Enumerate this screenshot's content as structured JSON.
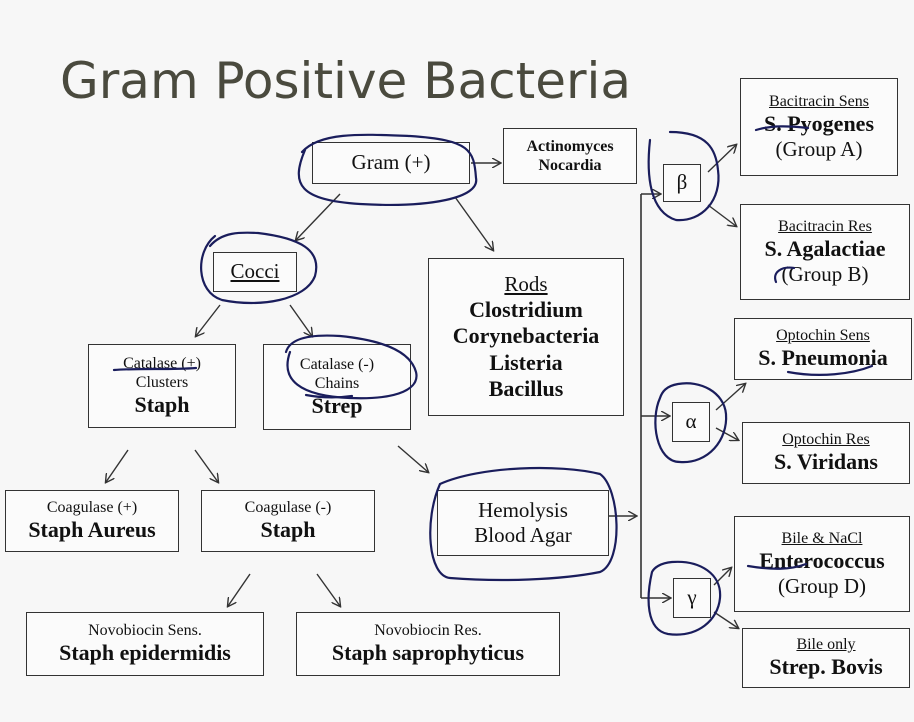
{
  "title": "Gram Positive Bacteria",
  "nodes": {
    "gram_pos": {
      "label": "Gram (+)"
    },
    "actino": {
      "line1": "Actinomyces",
      "line2": "Nocardia"
    },
    "cocci": {
      "label": "Cocci"
    },
    "rods": {
      "header": "Rods",
      "items": [
        "Clostridium",
        "Corynebacteria",
        "Listeria",
        "Bacillus"
      ]
    },
    "staph": {
      "line1": "Catalase (+)",
      "line2": "Clusters",
      "name": "Staph"
    },
    "strep": {
      "line1": "Catalase (-)",
      "line2": "Chains",
      "name": "Strep"
    },
    "coag_pos": {
      "line1": "Coagulase (+)",
      "name": "Staph Aureus"
    },
    "coag_neg": {
      "line1": "Coagulase (-)",
      "name": "Staph"
    },
    "novo_sens": {
      "line1": "Novobiocin Sens.",
      "name": "Staph epidermidis"
    },
    "novo_res": {
      "line1": "Novobiocin Res.",
      "name": "Staph saprophyticus"
    },
    "hemolysis": {
      "line1": "Hemolysis",
      "line2": "Blood Agar"
    },
    "beta": {
      "label": "β"
    },
    "alpha": {
      "label": "α"
    },
    "gamma": {
      "label": "γ"
    },
    "pyogenes": {
      "test": "Bacitracin Sens",
      "name": "S. Pyogenes",
      "group": "(Group A)"
    },
    "agalactiae": {
      "test": "Bacitracin Res",
      "name": "S. Agalactiae",
      "group": "(Group B)"
    },
    "pneumonia": {
      "test": "Optochin Sens",
      "name": "S. Pneumonia"
    },
    "viridans": {
      "test": "Optochin Res",
      "name": "S. Viridans"
    },
    "enterococcus": {
      "test": "Bile & NaCl",
      "name": "Enterococcus",
      "group": "(Group D)"
    },
    "bovis": {
      "test": "Bile only",
      "name": "Strep. Bovis"
    }
  },
  "colors": {
    "ink": "#1a1d5c",
    "line": "#333333",
    "title": "#4a4a3e"
  }
}
